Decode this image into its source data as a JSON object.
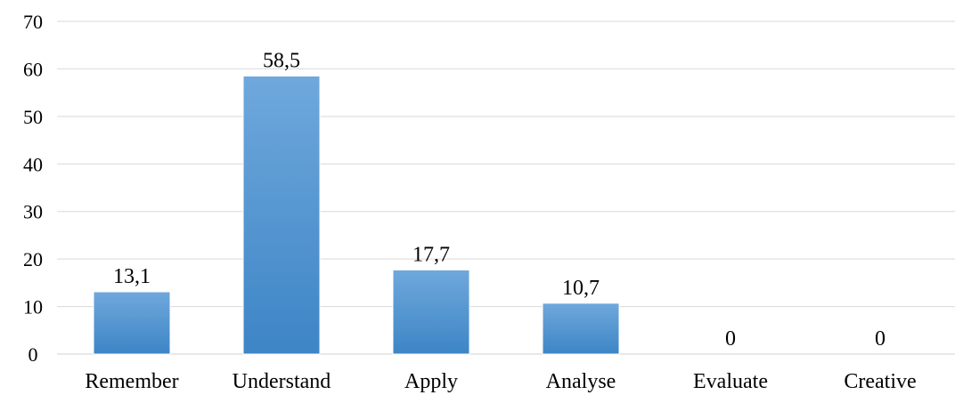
{
  "chart_data": {
    "type": "bar",
    "title": "",
    "xlabel": "",
    "ylabel": "",
    "categories": [
      "Remember",
      "Understand",
      "Apply",
      "Analyse",
      "Evaluate",
      "Creative"
    ],
    "values": [
      13.1,
      58.5,
      17.7,
      10.7,
      0,
      0
    ],
    "data_labels": [
      "13,1",
      "58,5",
      "17,7",
      "10,7",
      "0",
      "0"
    ],
    "ylim": [
      0,
      70
    ],
    "yticks": [
      0,
      10,
      20,
      30,
      40,
      50,
      60,
      70
    ],
    "grid": true,
    "legend": "none",
    "bar_color_top": "#6fa8dc",
    "bar_color_bottom": "#3d85c6"
  }
}
